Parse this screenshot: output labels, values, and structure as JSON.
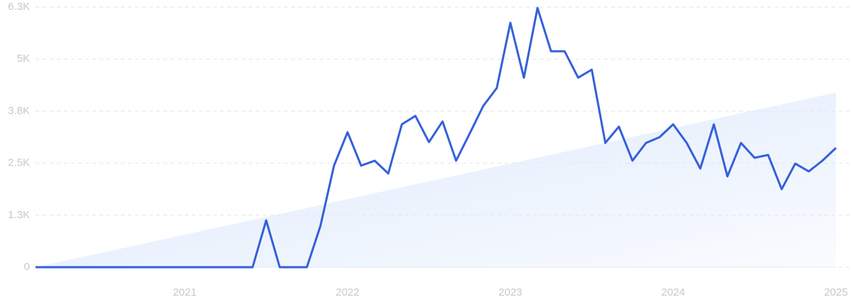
{
  "chart_data": {
    "type": "line",
    "categories": [
      null,
      null,
      null,
      null,
      null,
      null,
      null,
      null,
      null,
      null,
      null,
      "2021",
      null,
      null,
      null,
      null,
      null,
      null,
      null,
      null,
      null,
      null,
      null,
      "2022",
      null,
      null,
      null,
      null,
      null,
      null,
      null,
      null,
      null,
      null,
      null,
      "2023",
      null,
      null,
      null,
      null,
      null,
      null,
      null,
      null,
      null,
      null,
      null,
      "2024",
      null,
      null,
      null,
      null,
      null,
      null,
      null,
      null,
      null,
      null,
      null,
      "2025"
    ],
    "values": [
      0,
      0,
      0,
      0,
      0,
      0,
      0,
      0,
      0,
      0,
      0,
      0,
      0,
      0,
      0,
      0,
      0,
      1135,
      0,
      0,
      0,
      1000,
      2460,
      3270,
      2460,
      2580,
      2270,
      3460,
      3665,
      3030,
      3530,
      2580,
      3235,
      3905,
      4340,
      5920,
      4590,
      6280,
      5230,
      5230,
      4590,
      4785,
      3010,
      3405,
      2580,
      3010,
      3150,
      3460,
      3010,
      2390,
      3460,
      2200,
      3010,
      2650,
      2720,
      1890,
      2510,
      2320,
      2580,
      2890
    ],
    "color": "#3560d9",
    "trend": [
      0,
      4230
    ],
    "trend_color": "#dbe8fb",
    "ylim": [
      0,
      6300
    ],
    "yticks": [
      0,
      {
        "value": 1260,
        "label": "1.3K"
      },
      {
        "value": 2520,
        "label": "2.5K"
      },
      {
        "value": 3780,
        "label": "3.8K"
      },
      {
        "value": 5040,
        "label": "5K"
      },
      {
        "value": 6300,
        "label": "6.3K"
      }
    ],
    "grid": true
  }
}
